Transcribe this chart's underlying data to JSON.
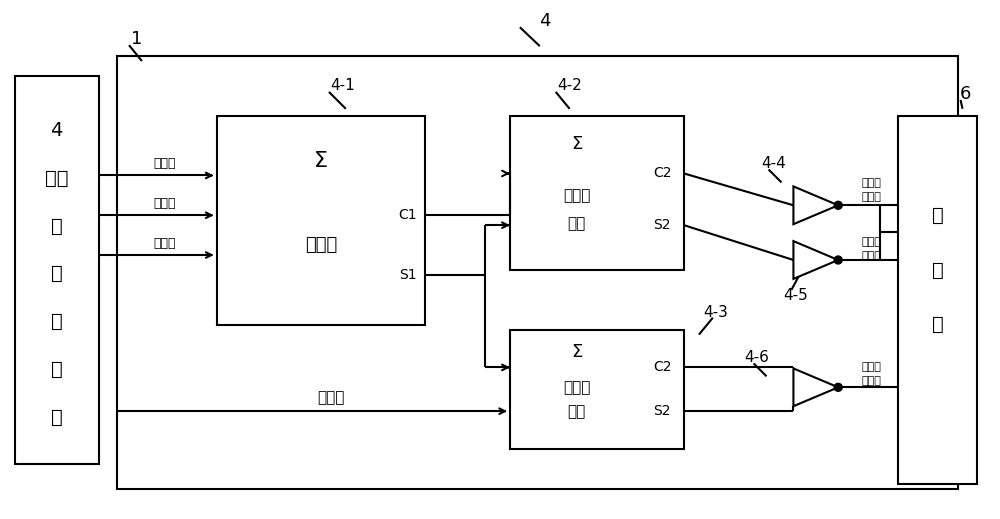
{
  "bg_color": "#ffffff",
  "line_color": "#000000",
  "fig_width": 10.0,
  "fig_height": 5.19,
  "labels": {
    "label_1": "1",
    "label_4": "4",
    "label_4_1": "4-1",
    "label_4_2": "4-2",
    "label_4_3": "4-3",
    "label_4_4": "4-4",
    "label_4_5": "4-5",
    "label_4_6": "4-6",
    "label_6": "6"
  },
  "block1_text": [
    "4",
    "输入",
    "查",
    "找",
    "表",
    "单",
    "元"
  ],
  "block41_texts": [
    "Σ",
    "全加器",
    "C1",
    "S1"
  ],
  "block42_texts": [
    "Σ",
    "一号半",
    "加器",
    "C2",
    "S2"
  ],
  "block43_texts": [
    "Σ",
    "二号半",
    "加器",
    "C2",
    "S2"
  ],
  "comparator_text": [
    "比",
    "较",
    "器"
  ],
  "info_label": "信息位",
  "config_label": "配置位",
  "berg_label": [
    "伯格码",
    "校验位"
  ]
}
